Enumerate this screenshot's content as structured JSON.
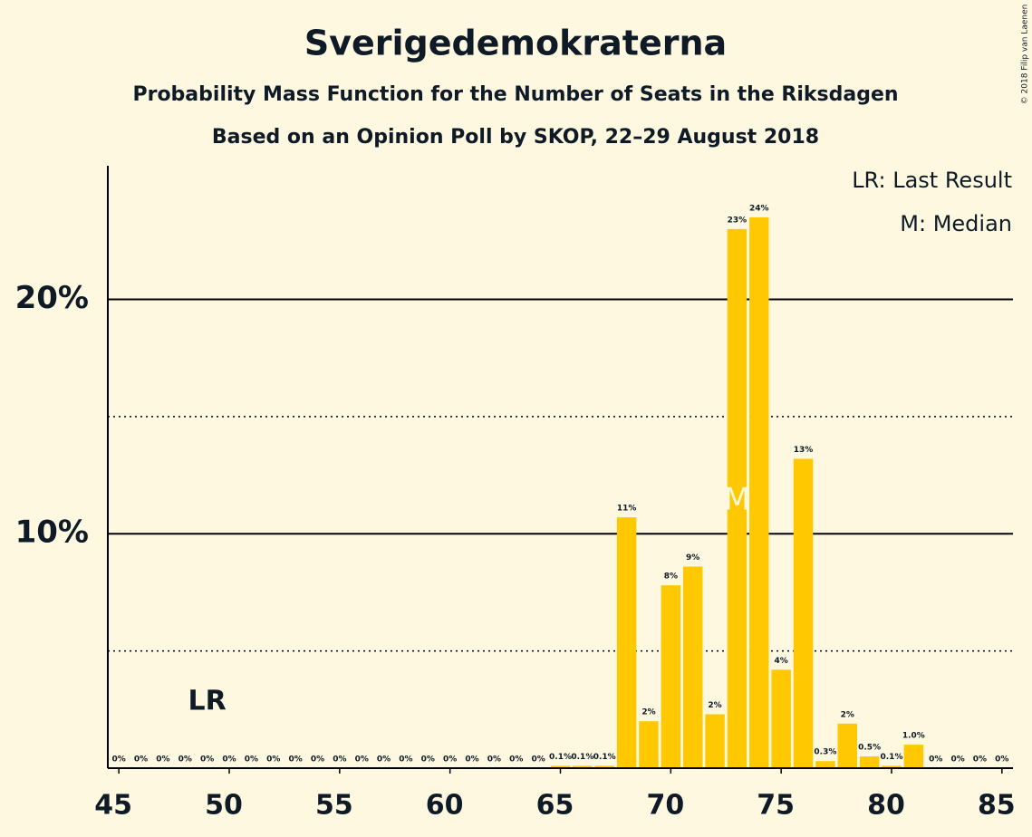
{
  "chart_data": {
    "type": "bar",
    "title": "Sverigedemokraterna",
    "subtitle": "Probability Mass Function for the Number of Seats in the Riksdagen",
    "subtitle2": "Based on an Opinion Poll by SKOP, 22–29 August 2018",
    "copyright": "© 2018 Filip van Laenen",
    "legend": [
      "LR: Last Result",
      "M: Median"
    ],
    "legend_position": "upper right",
    "color": "#ffc800",
    "x": [
      45,
      46,
      47,
      48,
      49,
      50,
      51,
      52,
      53,
      54,
      55,
      56,
      57,
      58,
      59,
      60,
      61,
      62,
      63,
      64,
      65,
      66,
      67,
      68,
      69,
      70,
      71,
      72,
      73,
      74,
      75,
      76,
      77,
      78,
      79,
      80,
      81,
      82,
      83,
      84,
      85
    ],
    "values": [
      0,
      0,
      0,
      0,
      0,
      0,
      0,
      0,
      0,
      0,
      0,
      0,
      0,
      0,
      0,
      0,
      0,
      0,
      0,
      0,
      0.1,
      0.1,
      0.1,
      10.7,
      2.0,
      7.8,
      8.6,
      2.3,
      23.0,
      23.5,
      4.2,
      13.2,
      0.3,
      1.9,
      0.5,
      0.1,
      1.0,
      0,
      0,
      0,
      0
    ],
    "value_labels": [
      "0%",
      "0%",
      "0%",
      "0%",
      "0%",
      "0%",
      "0%",
      "0%",
      "0%",
      "0%",
      "0%",
      "0%",
      "0%",
      "0%",
      "0%",
      "0%",
      "0%",
      "0%",
      "0%",
      "0%",
      "0.1%",
      "0.1%",
      "0.1%",
      "11%",
      "2%",
      "8%",
      "9%",
      "2%",
      "23%",
      "24%",
      "4%",
      "13%",
      "0.3%",
      "2%",
      "0.5%",
      "0.1%",
      "1.0%",
      "0%",
      "0%",
      "0%",
      "0%"
    ],
    "xlim": [
      44.5,
      85.5
    ],
    "xticks": [
      45,
      50,
      55,
      60,
      65,
      70,
      75,
      80,
      85
    ],
    "ylim": [
      0,
      25.7
    ],
    "yticks": [
      {
        "value": 10,
        "label": "10%"
      },
      {
        "value": 20,
        "label": "20%"
      }
    ],
    "minor_gridlines": [
      5,
      15
    ],
    "annotations": [
      {
        "label": "LR",
        "x": 49
      },
      {
        "label": "M",
        "x": 73
      }
    ]
  }
}
